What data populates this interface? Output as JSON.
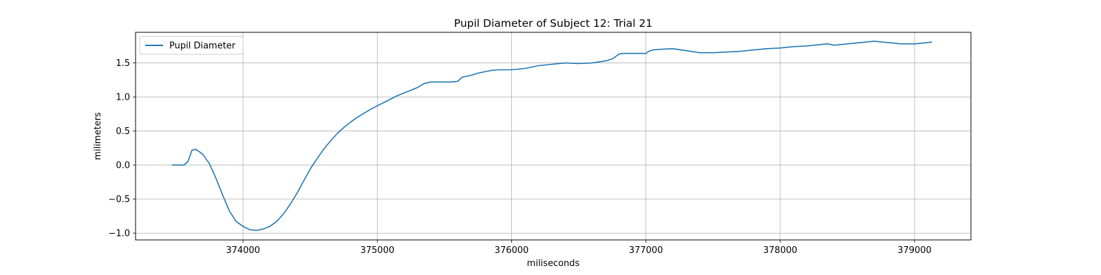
{
  "chart_data": {
    "type": "line",
    "title": "Pupil Diameter of Subject 12: Trial 21",
    "xlabel": "miliseconds",
    "ylabel": "milimeters",
    "xlim": [
      373200,
      379420
    ],
    "ylim": [
      -1.1,
      1.95
    ],
    "xticks": [
      374000,
      375000,
      376000,
      377000,
      378000,
      379000
    ],
    "xtick_labels": [
      "374000",
      "375000",
      "376000",
      "377000",
      "378000",
      "379000"
    ],
    "yticks": [
      -1.0,
      -0.5,
      0.0,
      0.5,
      1.0,
      1.5
    ],
    "ytick_labels": [
      "−1.0",
      "−0.5",
      "0.0",
      "0.5",
      "1.0",
      "1.5"
    ],
    "grid": true,
    "legend_position": "top-left",
    "series": [
      {
        "name": "Pupil Diameter",
        "color": "#1f77b4",
        "x": [
          373470,
          373560,
          373590,
          373620,
          373650,
          373700,
          373750,
          373800,
          373850,
          373900,
          373950,
          374000,
          374050,
          374100,
          374150,
          374200,
          374250,
          374300,
          374350,
          374400,
          374450,
          374500,
          374550,
          374600,
          374650,
          374700,
          374750,
          374800,
          374850,
          374900,
          374950,
          375000,
          375050,
          375100,
          375150,
          375200,
          375250,
          375300,
          375350,
          375400,
          375430,
          375450,
          375500,
          375550,
          375600,
          375630,
          375700,
          375750,
          375800,
          375850,
          375900,
          375950,
          376000,
          376050,
          376100,
          376150,
          376200,
          376300,
          376400,
          376500,
          376600,
          376700,
          376750,
          376800,
          376830,
          376850,
          376900,
          377000,
          377020,
          377050,
          377100,
          377200,
          377300,
          377400,
          377500,
          377600,
          377700,
          377800,
          377900,
          378000,
          378100,
          378200,
          378300,
          378350,
          378380,
          378400,
          378500,
          378600,
          378650,
          378700,
          378800,
          378850,
          378900,
          379000,
          379100,
          379130
        ],
        "y": [
          0.0,
          0.0,
          0.05,
          0.22,
          0.23,
          0.16,
          0.02,
          -0.2,
          -0.45,
          -0.68,
          -0.83,
          -0.9,
          -0.95,
          -0.96,
          -0.94,
          -0.9,
          -0.83,
          -0.72,
          -0.58,
          -0.42,
          -0.24,
          -0.06,
          0.09,
          0.23,
          0.35,
          0.46,
          0.55,
          0.63,
          0.7,
          0.76,
          0.82,
          0.87,
          0.92,
          0.97,
          1.02,
          1.06,
          1.1,
          1.14,
          1.2,
          1.22,
          1.22,
          1.22,
          1.22,
          1.22,
          1.23,
          1.29,
          1.32,
          1.35,
          1.37,
          1.39,
          1.4,
          1.4,
          1.4,
          1.41,
          1.42,
          1.44,
          1.46,
          1.48,
          1.5,
          1.49,
          1.5,
          1.53,
          1.56,
          1.63,
          1.64,
          1.64,
          1.64,
          1.64,
          1.67,
          1.69,
          1.7,
          1.71,
          1.68,
          1.65,
          1.65,
          1.66,
          1.67,
          1.69,
          1.71,
          1.72,
          1.74,
          1.75,
          1.77,
          1.78,
          1.77,
          1.76,
          1.78,
          1.8,
          1.81,
          1.82,
          1.8,
          1.79,
          1.78,
          1.78,
          1.8,
          1.81
        ]
      }
    ]
  }
}
